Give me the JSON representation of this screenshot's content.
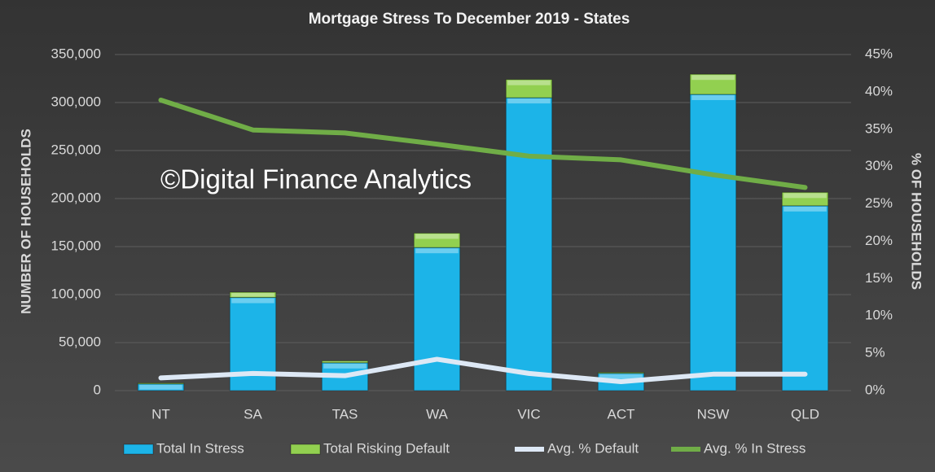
{
  "chart_data": {
    "type": "bar",
    "stacked": true,
    "title": "Mortgage Stress To December 2019 - States",
    "annotation": "©Digital Finance Analytics",
    "y_label": "NUMBER OF HOUSEHOLDS",
    "y2_label": "% OF HOUSEHOLDS",
    "categories": [
      "NT",
      "SA",
      "TAS",
      "WA",
      "VIC",
      "ACT",
      "NSW",
      "QLD"
    ],
    "series": [
      {
        "name": "Total In Stress",
        "type": "bar",
        "color": "#1cb4e8",
        "values": [
          7000,
          97000,
          29000,
          149000,
          305000,
          18000,
          308500,
          192500
        ]
      },
      {
        "name": "Total Risking Default",
        "type": "bar",
        "color": "#92d050",
        "values": [
          1000,
          5500,
          2000,
          15000,
          19000,
          1000,
          21000,
          14000
        ]
      },
      {
        "name": "Avg. % Default",
        "type": "line",
        "axis": "y2",
        "color": "#dde8f5",
        "values": [
          1.7,
          2.3,
          2.0,
          4.2,
          2.3,
          1.2,
          2.2,
          2.2
        ]
      },
      {
        "name": "Avg. % In Stress",
        "type": "line",
        "axis": "y2",
        "color": "#70ad47",
        "values": [
          38.9,
          34.9,
          34.5,
          33.0,
          31.4,
          30.9,
          28.9,
          27.2
        ]
      }
    ],
    "ylim": [
      0,
      350000
    ],
    "yticks": [
      0,
      {
        "value": 50000,
        "label": "50,000"
      },
      {
        "value": 100000,
        "label": "100,000"
      },
      {
        "value": 150000,
        "label": "150,000"
      },
      {
        "value": 200000,
        "label": "200,000"
      },
      {
        "value": 250000,
        "label": "250,000"
      },
      {
        "value": 300000,
        "label": "300,000"
      },
      {
        "value": 350000,
        "label": "350,000"
      }
    ],
    "y2lim": [
      0,
      45
    ],
    "y2ticks": [
      {
        "value": 0,
        "label": "0%"
      },
      {
        "value": 5,
        "label": "5%"
      },
      {
        "value": 10,
        "label": "10%"
      },
      {
        "value": 15,
        "label": "15%"
      },
      {
        "value": 20,
        "label": "20%"
      },
      {
        "value": 25,
        "label": "25%"
      },
      {
        "value": 30,
        "label": "30%"
      },
      {
        "value": 35,
        "label": "35%"
      },
      {
        "value": 40,
        "label": "40%"
      },
      {
        "value": 45,
        "label": "45%"
      }
    ],
    "grid": true,
    "legend": "bottom"
  }
}
